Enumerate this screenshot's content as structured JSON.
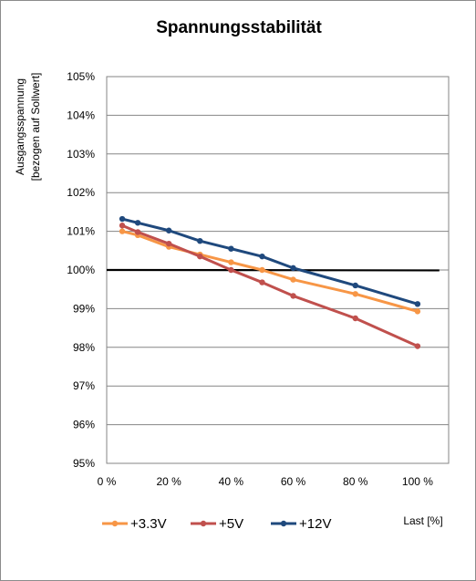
{
  "chart_data": {
    "type": "line",
    "title": "Spannungsstabilität",
    "ylabel_line1": "Ausgangsspannung",
    "ylabel_line2": "[bezogen auf Sollwert]",
    "xlabel": "Last [%]",
    "xlim": [
      0,
      110
    ],
    "ylim": [
      95,
      105
    ],
    "x_ticks": [
      0,
      20,
      40,
      60,
      80,
      100
    ],
    "x_tick_labels": [
      "0 %",
      "20 %",
      "40 %",
      "60 %",
      "80 %",
      "100 %"
    ],
    "y_ticks": [
      95,
      96,
      97,
      98,
      99,
      100,
      101,
      102,
      103,
      104,
      105
    ],
    "y_tick_labels": [
      "95%",
      "96%",
      "97%",
      "98%",
      "99%",
      "100%",
      "101%",
      "102%",
      "103%",
      "104%",
      "105%"
    ],
    "grid": "horizontal",
    "legend_position": "bottom",
    "series": [
      {
        "name": "+3.3V",
        "color": "#f79646",
        "x": [
          5,
          10,
          20,
          30,
          40,
          50,
          60,
          80,
          100
        ],
        "y": [
          101.0,
          100.9,
          100.6,
          100.4,
          100.2,
          100.0,
          99.75,
          99.38,
          98.93
        ]
      },
      {
        "name": "+5V",
        "color": "#c0504d",
        "x": [
          5,
          10,
          20,
          30,
          40,
          50,
          60,
          80,
          100
        ],
        "y": [
          101.15,
          100.98,
          100.68,
          100.35,
          100.0,
          99.68,
          99.33,
          98.75,
          98.03
        ]
      },
      {
        "name": "+12V",
        "color": "#1f497d",
        "x": [
          5,
          10,
          20,
          30,
          40,
          50,
          60,
          80,
          100
        ],
        "y": [
          101.32,
          101.22,
          101.02,
          100.75,
          100.55,
          100.35,
          100.05,
          99.6,
          99.12
        ]
      }
    ],
    "reference_line": {
      "color": "#000000",
      "x": [
        0,
        107
      ],
      "y": [
        100.0,
        99.99
      ]
    }
  }
}
